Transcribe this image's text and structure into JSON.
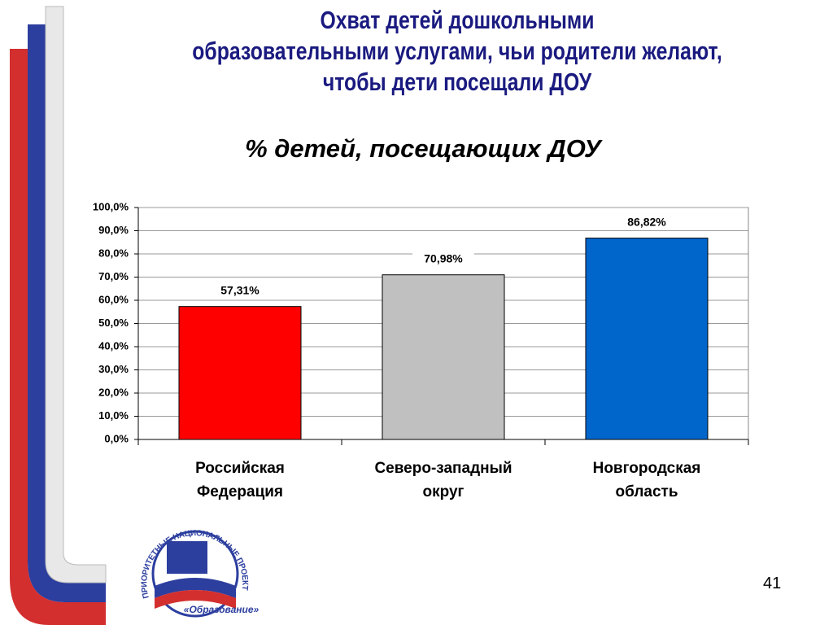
{
  "chart_data": {
    "type": "bar",
    "title": "Охват детей дошкольными\nобразовательными услугами, чьи родители желают,\nчтобы дети посещали ДОУ",
    "subtitle": "% детей, посещающих ДОУ",
    "categories": [
      "Российская\nФедерация",
      "Северо-западный\nокруг",
      "Новгородская\nобласть"
    ],
    "values": [
      57.31,
      70.98,
      86.82
    ],
    "value_labels": [
      "57,31%",
      "70,98%",
      "86,82%"
    ],
    "colors": [
      "#ff0000",
      "#c0c0c0",
      "#0066cc"
    ],
    "ylim": [
      0,
      100
    ],
    "yticks": [
      {
        "value": 0,
        "label": "0,0%"
      },
      {
        "value": 10,
        "label": "10,0%"
      },
      {
        "value": 20,
        "label": "20,0%"
      },
      {
        "value": 30,
        "label": "30,0%"
      },
      {
        "value": 40,
        "label": "40,0%"
      },
      {
        "value": 50,
        "label": "50,0%"
      },
      {
        "value": 60,
        "label": "60,0%"
      },
      {
        "value": 70,
        "label": "70,0%"
      },
      {
        "value": 80,
        "label": "80,0%"
      },
      {
        "value": 90,
        "label": "90,0%"
      },
      {
        "value": 100,
        "label": "100,0%"
      }
    ],
    "grid": true
  },
  "logo": {
    "ring_text": "ПРИОРИТЕТНЫЕ НАЦИОНАЛЬНЫЕ ПРОЕКТЫ",
    "name": "«Образование»"
  },
  "slide_number": "41"
}
